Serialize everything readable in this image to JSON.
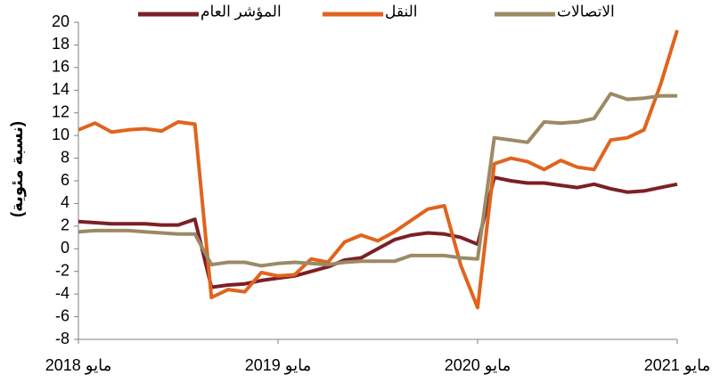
{
  "chart_data": {
    "type": "line",
    "y_label": "(نسبة مئوية)",
    "categories": [
      "مايو 2018",
      null,
      null,
      null,
      null,
      null,
      null,
      null,
      null,
      null,
      null,
      null,
      "مايو 2019",
      null,
      null,
      null,
      null,
      null,
      null,
      null,
      null,
      null,
      null,
      null,
      "مايو 2020",
      null,
      null,
      null,
      null,
      null,
      null,
      null,
      null,
      null,
      null,
      null,
      "مايو 2021"
    ],
    "series": [
      {
        "name": "المؤشر العام",
        "color": "#7b2026",
        "values": [
          2.4,
          2.3,
          2.2,
          2.2,
          2.2,
          2.1,
          2.1,
          2.6,
          -3.4,
          -3.2,
          -3.1,
          -2.8,
          -2.6,
          -2.4,
          -2.0,
          -1.6,
          -1.0,
          -0.8,
          0.0,
          0.8,
          1.2,
          1.4,
          1.3,
          1.0,
          0.4,
          6.3,
          6.0,
          5.8,
          5.8,
          5.6,
          5.4,
          5.7,
          5.3,
          5.0,
          5.1,
          5.4,
          5.7
        ]
      },
      {
        "name": "النقل",
        "color": "#e0641e",
        "values": [
          10.5,
          11.1,
          10.3,
          10.5,
          10.6,
          10.4,
          11.2,
          11.0,
          -4.3,
          -3.6,
          -3.8,
          -2.1,
          -2.4,
          -2.3,
          -0.9,
          -1.2,
          0.6,
          1.2,
          0.7,
          1.5,
          2.5,
          3.5,
          3.8,
          -1.5,
          -5.2,
          7.5,
          8.0,
          7.7,
          7.0,
          7.8,
          7.2,
          7.0,
          9.6,
          9.8,
          10.5,
          14.5,
          19.3
        ]
      },
      {
        "name": "الاتصالات",
        "color": "#9b8a64",
        "values": [
          1.5,
          1.6,
          1.6,
          1.6,
          1.5,
          1.4,
          1.3,
          1.3,
          -1.4,
          -1.2,
          -1.2,
          -1.5,
          -1.3,
          -1.2,
          -1.3,
          -1.4,
          -1.2,
          -1.1,
          -1.1,
          -1.1,
          -0.6,
          -0.6,
          -0.6,
          -0.8,
          -0.9,
          9.8,
          9.6,
          9.4,
          11.2,
          11.1,
          11.2,
          11.5,
          13.7,
          13.2,
          13.3,
          13.5,
          13.5
        ]
      }
    ],
    "ylim": [
      -8,
      20
    ],
    "yticks": [
      -8,
      -6,
      -4,
      -2,
      0,
      2,
      4,
      6,
      8,
      10,
      12,
      14,
      16,
      18,
      20
    ]
  }
}
